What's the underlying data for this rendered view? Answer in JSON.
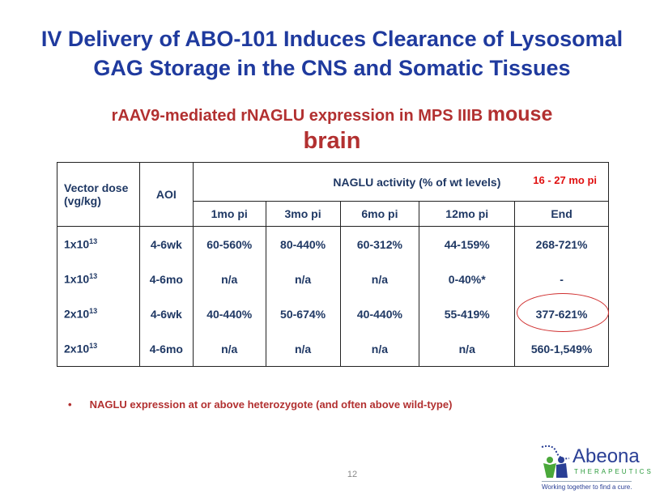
{
  "title": {
    "line1": "IV Delivery of ABO-101 Induces Clearance of Lysosomal",
    "line2": "GAG Storage in the CNS and Somatic Tissues"
  },
  "subtitle": {
    "part1": "rAAV9-mediated rNAGLU expression in MPS IIIB ",
    "part2": "mouse",
    "line2": "brain"
  },
  "table": {
    "headers": {
      "dose": "Vector dose (vg/kg)",
      "aoi": "AOI",
      "activity": "NAGLU activity (% of wt levels)",
      "note": "16 - 27 mo pi",
      "timepoints": [
        "1mo pi",
        "3mo pi",
        "6mo pi",
        "12mo pi",
        "End"
      ]
    },
    "rows": [
      {
        "dose_base": "1x10",
        "dose_exp": "13",
        "aoi": "4-6wk",
        "values": [
          "60-560%",
          "80-440%",
          "60-312%",
          "44-159%",
          "268-721%"
        ]
      },
      {
        "dose_base": "1x10",
        "dose_exp": "13",
        "aoi": "4-6mo",
        "values": [
          "n/a",
          "n/a",
          "n/a",
          "0-40%*",
          "-"
        ]
      },
      {
        "dose_base": "2x10",
        "dose_exp": "13",
        "aoi": "4-6wk",
        "values": [
          "40-440%",
          "50-674%",
          "40-440%",
          "55-419%",
          "377-621%"
        ]
      },
      {
        "dose_base": "2x10",
        "dose_exp": "13",
        "aoi": "4-6mo",
        "values": [
          "n/a",
          "n/a",
          "n/a",
          "n/a",
          "560-1,549%"
        ]
      }
    ]
  },
  "bullet": "NAGLU expression at or above heterozygote (and often above wild-type)",
  "page_number": "12",
  "logo": {
    "name": "Abeona",
    "sub": "THERAPEUTICS",
    "tagline": "Working together to find a cure."
  }
}
